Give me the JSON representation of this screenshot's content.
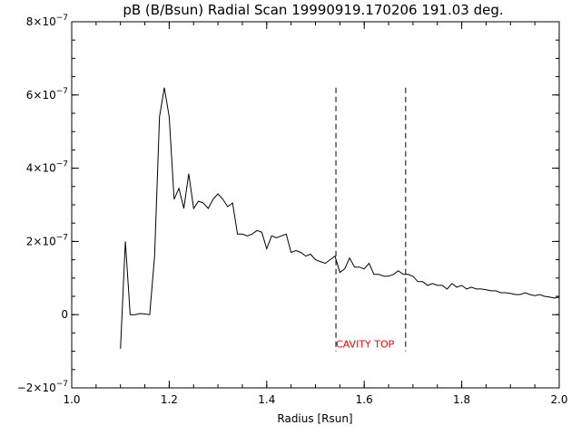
{
  "chart_data": {
    "type": "line",
    "title": "pB (B/Bsun) Radial Scan 19990919.170206 191.03 deg.",
    "xlabel": "Radius [Rsun]",
    "ylabel": "",
    "xlim": [
      1.0,
      2.0
    ],
    "ylim": [
      -2e-07,
      8e-07
    ],
    "x_ticks": [
      1.0,
      1.2,
      1.4,
      1.6,
      1.8,
      2.0
    ],
    "x_tick_labels": [
      "1.0",
      "1.2",
      "1.4",
      "1.6",
      "1.8",
      "2.0"
    ],
    "y_ticks": [
      {
        "value": -2e-07,
        "mantissa": "−2×10",
        "exponent": "−7"
      },
      {
        "value": 0,
        "mantissa": "0",
        "exponent": ""
      },
      {
        "value": 2e-07,
        "mantissa": "2×10",
        "exponent": "−7"
      },
      {
        "value": 4e-07,
        "mantissa": "4×10",
        "exponent": "−7"
      },
      {
        "value": 6e-07,
        "mantissa": "6×10",
        "exponent": "−7"
      },
      {
        "value": 8e-07,
        "mantissa": "8×10",
        "exponent": "−7"
      }
    ],
    "grid": false,
    "line_color": "#000000",
    "annotation_color": "#ff0000",
    "series": [
      {
        "x": [
          1.1,
          1.11,
          1.12,
          1.13,
          1.14,
          1.15,
          1.16,
          1.17,
          1.18,
          1.19,
          1.2,
          1.21,
          1.22,
          1.23,
          1.24,
          1.25,
          1.26,
          1.27,
          1.28,
          1.29,
          1.3,
          1.31,
          1.32,
          1.33,
          1.34,
          1.35,
          1.36,
          1.37,
          1.38,
          1.39,
          1.4,
          1.41,
          1.42,
          1.43,
          1.44,
          1.45,
          1.46,
          1.47,
          1.48,
          1.49,
          1.5,
          1.51,
          1.52,
          1.53,
          1.54,
          1.55,
          1.56,
          1.57,
          1.58,
          1.59,
          1.6,
          1.61,
          1.62,
          1.63,
          1.64,
          1.65,
          1.66,
          1.67,
          1.68,
          1.69,
          1.7,
          1.71,
          1.72,
          1.73,
          1.74,
          1.75,
          1.76,
          1.77,
          1.78,
          1.79,
          1.8,
          1.81,
          1.82,
          1.83,
          1.84,
          1.85,
          1.86,
          1.87,
          1.88,
          1.89,
          1.9,
          1.91,
          1.92,
          1.93,
          1.94,
          1.95,
          1.96,
          1.97,
          1.98,
          1.99,
          2.0
        ],
        "values": [
          -9.3e-08,
          2e-07,
          0.0,
          0.0,
          3e-09,
          2e-09,
          0.0,
          1.6e-07,
          5.4e-07,
          6.2e-07,
          5.4e-07,
          3.15e-07,
          3.45e-07,
          2.9e-07,
          3.85e-07,
          2.9e-07,
          3.1e-07,
          3.05e-07,
          2.9e-07,
          3.15e-07,
          3.3e-07,
          3.15e-07,
          2.95e-07,
          3.05e-07,
          2.2e-07,
          2.2e-07,
          2.15e-07,
          2.2e-07,
          2.3e-07,
          2.25e-07,
          1.8e-07,
          2.15e-07,
          2.1e-07,
          2.15e-07,
          2.2e-07,
          1.7e-07,
          1.75e-07,
          1.7e-07,
          1.6e-07,
          1.65e-07,
          1.5e-07,
          1.45e-07,
          1.4e-07,
          1.5e-07,
          1.6e-07,
          1.15e-07,
          1.25e-07,
          1.55e-07,
          1.3e-07,
          1.3e-07,
          1.25e-07,
          1.4e-07,
          1.1e-07,
          1.1e-07,
          1.05e-07,
          1.05e-07,
          1.1e-07,
          1.2e-07,
          1.1e-07,
          1.1e-07,
          1.05e-07,
          9e-08,
          9e-08,
          8e-08,
          8.5e-08,
          8e-08,
          8e-08,
          7e-08,
          8.5e-08,
          7.5e-08,
          8e-08,
          7e-08,
          7.5e-08,
          7e-08,
          7e-08,
          6.8e-08,
          6.5e-08,
          6.5e-08,
          6e-08,
          6e-08,
          5.8e-08,
          5.5e-08,
          5.5e-08,
          6e-08,
          5.5e-08,
          5.2e-08,
          5.5e-08,
          5e-08,
          4.8e-08,
          4.5e-08,
          4.8e-08
        ]
      }
    ],
    "annotations": [
      {
        "text": "CAVITY TOP",
        "x_range": [
          1.542,
          1.685
        ],
        "y_range": [
          -1e-07,
          6.2e-07
        ],
        "style": "dashed"
      }
    ]
  }
}
